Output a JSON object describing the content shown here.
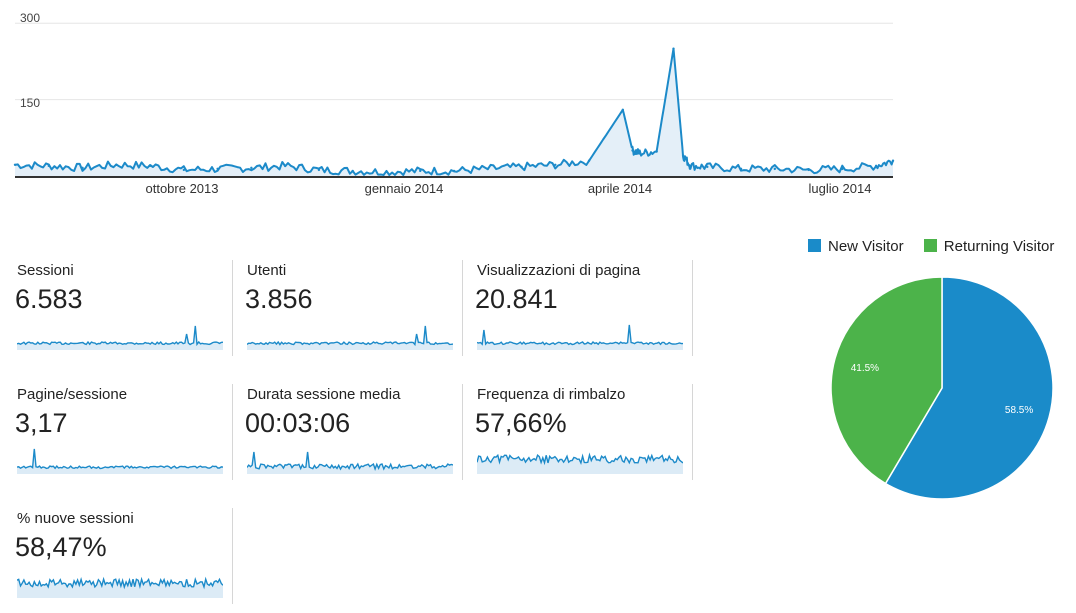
{
  "main_chart": {
    "y_ticks": [
      "300",
      "150"
    ],
    "x_ticks": [
      "ottobre 2013",
      "gennaio 2014",
      "aprile 2014",
      "luglio 2014"
    ],
    "color": "#1c8ac9"
  },
  "metrics": [
    {
      "label": "Sessioni",
      "value": "6.583",
      "sparkline": "flat-spike"
    },
    {
      "label": "Utenti",
      "value": "3.856",
      "sparkline": "flat-spike"
    },
    {
      "label": "Visualizzazioni di pagina",
      "value": "20.841",
      "sparkline": "flat-spike-early"
    },
    {
      "label": "Pagine/sessione",
      "value": "3,17",
      "sparkline": "flat-spike-start"
    },
    {
      "label": "Durata sessione media",
      "value": "00:03:06",
      "sparkline": "noisy-low"
    },
    {
      "label": "Frequenza di rimbalzo",
      "value": "57,66%",
      "sparkline": "noisy-high"
    },
    {
      "label": "% nuove sessioni",
      "value": "58,47%",
      "sparkline": "noisy-high"
    }
  ],
  "chart_data": [
    {
      "type": "area",
      "title": "",
      "xlabel": "",
      "ylabel": "",
      "ylim": [
        0,
        330
      ],
      "y_ticks": [
        150,
        300
      ],
      "x_tick_labels": [
        "ottobre 2013",
        "gennaio 2014",
        "aprile 2014",
        "luglio 2014"
      ],
      "x": [
        "2013-07-28",
        "2013-08-11",
        "2013-08-25",
        "2013-09-08",
        "2013-09-22",
        "2013-10-06",
        "2013-10-20",
        "2013-11-03",
        "2013-11-17",
        "2013-12-01",
        "2013-12-15",
        "2013-12-29",
        "2014-01-12",
        "2014-01-26",
        "2014-02-09",
        "2014-02-23",
        "2014-03-09",
        "2014-03-23",
        "2014-04-06",
        "2014-04-10",
        "2014-04-13",
        "2014-04-20",
        "2014-04-27",
        "2014-05-01",
        "2014-05-04",
        "2014-05-11",
        "2014-05-25",
        "2014-06-08",
        "2014-06-22",
        "2014-07-06",
        "2014-07-20",
        "2014-07-27"
      ],
      "series": [
        {
          "values": [
            22,
            20,
            16,
            22,
            20,
            12,
            14,
            16,
            20,
            12,
            10,
            8,
            10,
            10,
            14,
            18,
            22,
            30,
            130,
            50,
            45,
            48,
            250,
            40,
            20,
            18,
            14,
            14,
            12,
            14,
            20,
            30
          ]
        }
      ],
      "grid": true
    },
    {
      "type": "pie",
      "legend": "top",
      "categories": [
        "New Visitor",
        "Returning Visitor"
      ],
      "values": [
        58.5,
        41.5
      ],
      "labels": [
        "58.5%",
        "41.5%"
      ],
      "colors": [
        "#1a8bc9",
        "#4cb34a"
      ]
    }
  ]
}
